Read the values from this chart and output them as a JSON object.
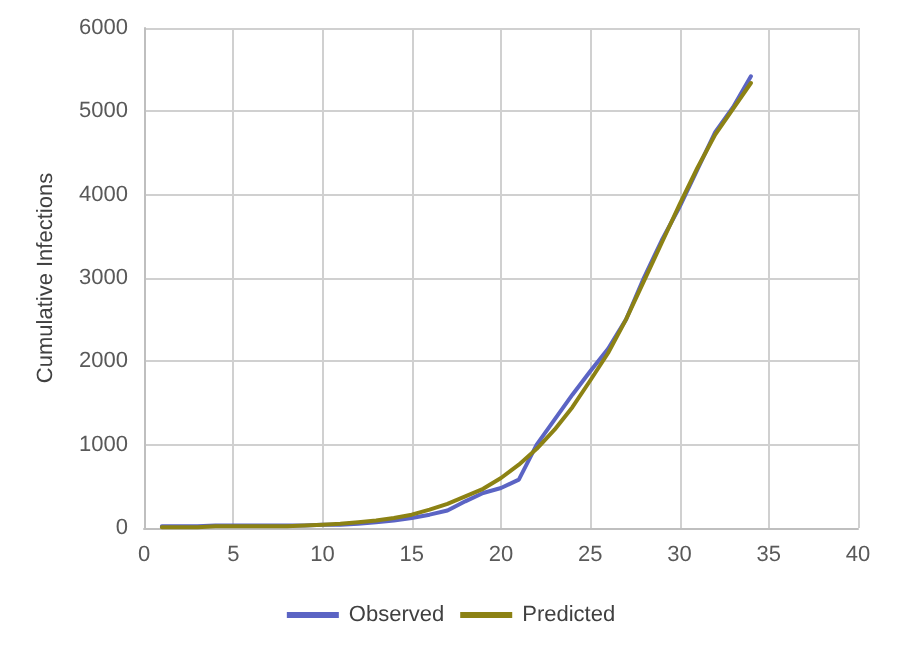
{
  "chart_data": {
    "type": "line",
    "ylabel": "Cumulative Infections",
    "x": [
      1,
      2,
      3,
      4,
      5,
      6,
      7,
      8,
      9,
      10,
      11,
      12,
      13,
      14,
      15,
      16,
      17,
      18,
      19,
      20,
      21,
      22,
      23,
      24,
      25,
      26,
      27,
      28,
      29,
      30,
      31,
      32,
      33,
      34
    ],
    "series": [
      {
        "name": "Observed",
        "color": "#5b64c4",
        "values": [
          20,
          20,
          20,
          30,
          30,
          30,
          30,
          30,
          30,
          40,
          40,
          50,
          70,
          90,
          120,
          160,
          210,
          320,
          420,
          480,
          580,
          1000,
          1300,
          1600,
          1880,
          2150,
          2500,
          3000,
          3450,
          3850,
          4300,
          4750,
          5050,
          5420
        ]
      },
      {
        "name": "Predicted",
        "color": "#8c8214",
        "values": [
          10,
          10,
          10,
          20,
          20,
          20,
          20,
          20,
          30,
          40,
          50,
          70,
          90,
          120,
          160,
          220,
          290,
          380,
          470,
          600,
          760,
          950,
          1180,
          1450,
          1770,
          2100,
          2500,
          2960,
          3420,
          3880,
          4320,
          4720,
          5030,
          5340
        ]
      }
    ],
    "xlim": [
      0,
      40
    ],
    "xticks": [
      0,
      5,
      10,
      15,
      20,
      25,
      30,
      35,
      40
    ],
    "ylim": [
      0,
      6000
    ],
    "yticks": [
      0,
      1000,
      2000,
      3000,
      4000,
      5000,
      6000
    ],
    "grid": true,
    "legend": "bottom",
    "marker": "none",
    "line_style": "solid"
  }
}
